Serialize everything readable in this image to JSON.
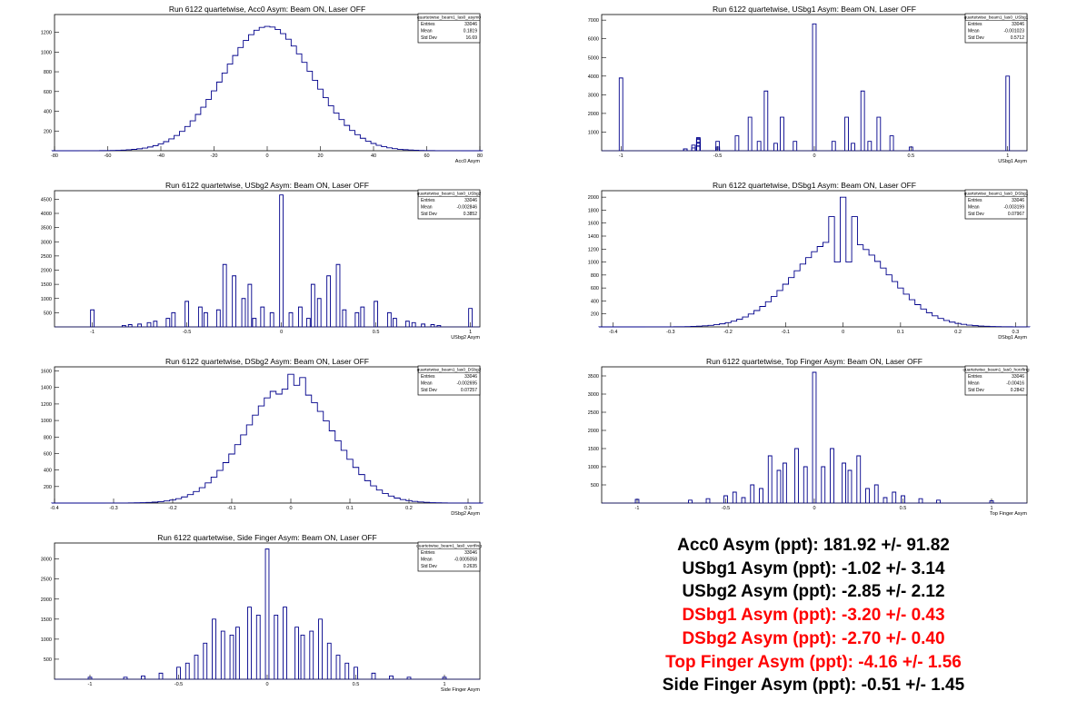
{
  "colors": {
    "hist": "#00008b",
    "frame": "#000000",
    "highlight": "#ff0000",
    "normal": "#000000"
  },
  "chart_data": [
    {
      "type": "histogram",
      "title": "Run 6122 quartetwise, Acc0 Asym: Beam ON, Laser OFF",
      "xlabel": "Acc0 Asym",
      "xlim": [
        -80,
        80
      ],
      "ylim": [
        0,
        1380
      ],
      "xticks": [
        -80,
        -60,
        -40,
        -20,
        0,
        20,
        40,
        60,
        80
      ],
      "yticks": [
        200,
        400,
        600,
        800,
        1000,
        1200
      ],
      "stats": {
        "name": "quartetwise_beam1_las0_asym0",
        "entries": "33046",
        "mean": "0.1819",
        "std_dev": "16.69"
      },
      "gaussian": {
        "amp": 1260,
        "mu": 0.2,
        "sigma": 16.7,
        "bin": 2
      }
    },
    {
      "type": "histogram",
      "title": "Run 6122 quartetwise, USbg1 Asym: Beam ON, Laser OFF",
      "xlabel": "USbg1 Asym",
      "xlim": [
        -1.1,
        1.1
      ],
      "ylim": [
        0,
        7300
      ],
      "xticks": [
        -1,
        -0.5,
        0,
        0.5,
        1
      ],
      "yticks": [
        1000,
        2000,
        3000,
        4000,
        5000,
        6000,
        7000
      ],
      "stats": {
        "name": "quartetwise_beam1_las0_USbg1",
        "entries": "33046",
        "mean": "-0.001023",
        "std_dev": "0.5712"
      },
      "spikes": [
        [
          -1.0,
          3900
        ],
        [
          -0.667,
          100
        ],
        [
          -0.625,
          150
        ],
        [
          -0.6,
          250
        ],
        [
          -0.5,
          100
        ],
        [
          -0.667,
          100
        ],
        [
          -0.6,
          250
        ],
        [
          -0.5,
          100
        ],
        [
          -0.6,
          250
        ],
        [
          -0.625,
          300
        ],
        [
          -0.6,
          400
        ],
        [
          -0.5,
          100
        ],
        [
          -0.6,
          450
        ],
        [
          -0.5,
          200
        ],
        [
          -0.6,
          600
        ],
        [
          -0.5,
          200
        ],
        [
          -0.6,
          650
        ],
        [
          -0.5,
          200
        ],
        [
          -0.6,
          700
        ],
        [
          -0.5,
          500
        ],
        [
          -0.4,
          800
        ],
        [
          -0.333,
          1800
        ],
        [
          -0.286,
          500
        ],
        [
          -0.25,
          3200
        ],
        [
          -0.2,
          400
        ],
        [
          -0.167,
          1800
        ],
        [
          -0.1,
          500
        ],
        [
          0.0,
          6800
        ],
        [
          0.1,
          500
        ],
        [
          0.167,
          1800
        ],
        [
          0.2,
          400
        ],
        [
          0.25,
          3200
        ],
        [
          0.286,
          500
        ],
        [
          0.333,
          1800
        ],
        [
          0.4,
          800
        ],
        [
          0.5,
          200
        ],
        [
          1.0,
          4000
        ]
      ]
    },
    {
      "type": "histogram",
      "title": "Run 6122 quartetwise, USbg2 Asym: Beam ON, Laser OFF",
      "xlabel": "USbg2 Asym",
      "xlim": [
        -1.2,
        1.05
      ],
      "ylim": [
        0,
        4800
      ],
      "xticks": [
        -1,
        -0.5,
        0,
        0.5,
        1
      ],
      "yticks": [
        500,
        1000,
        1500,
        2000,
        2500,
        3000,
        3500,
        4000,
        4500
      ],
      "stats": {
        "name": "quartetwise_beam1_las0_USbg2",
        "entries": "33046",
        "mean": "-0.002846",
        "std_dev": "0.3852"
      },
      "spikes": [
        [
          -1.0,
          600
        ],
        [
          -0.833,
          50
        ],
        [
          -0.8,
          80
        ],
        [
          -0.75,
          100
        ],
        [
          -0.7,
          150
        ],
        [
          -0.667,
          200
        ],
        [
          -0.6,
          300
        ],
        [
          -0.571,
          500
        ],
        [
          -0.5,
          900
        ],
        [
          -0.429,
          700
        ],
        [
          -0.4,
          500
        ],
        [
          -0.333,
          600
        ],
        [
          -0.3,
          2200
        ],
        [
          -0.25,
          1800
        ],
        [
          -0.2,
          1000
        ],
        [
          -0.167,
          1500
        ],
        [
          -0.143,
          300
        ],
        [
          -0.1,
          700
        ],
        [
          -0.05,
          500
        ],
        [
          0.0,
          4650
        ],
        [
          0.05,
          500
        ],
        [
          0.1,
          700
        ],
        [
          0.143,
          300
        ],
        [
          0.167,
          1500
        ],
        [
          0.2,
          1000
        ],
        [
          0.25,
          1800
        ],
        [
          0.3,
          2200
        ],
        [
          0.333,
          600
        ],
        [
          0.4,
          500
        ],
        [
          0.429,
          700
        ],
        [
          0.5,
          900
        ],
        [
          0.571,
          500
        ],
        [
          0.6,
          300
        ],
        [
          0.667,
          200
        ],
        [
          0.7,
          150
        ],
        [
          0.75,
          100
        ],
        [
          0.8,
          80
        ],
        [
          0.833,
          50
        ],
        [
          1.0,
          650
        ]
      ]
    },
    {
      "type": "histogram",
      "title": "Run 6122 quartetwise, DSbg1 Asym: Beam ON, Laser OFF",
      "xlabel": "DSbg1 Asym",
      "xlim": [
        -0.42,
        0.32
      ],
      "ylim": [
        0,
        2100
      ],
      "xticks": [
        -0.4,
        -0.3,
        -0.2,
        -0.1,
        0,
        0.1,
        0.2,
        0.3
      ],
      "yticks": [
        200,
        400,
        600,
        800,
        1000,
        1200,
        1400,
        1600,
        1800,
        2000
      ],
      "stats": {
        "name": "quartetwise_beam1_las0_DSbg1",
        "entries": "33046",
        "mean": "-0.003199",
        "std_dev": "0.07967"
      },
      "gaussian": {
        "amp": 1380,
        "mu": -0.003,
        "sigma": 0.0797,
        "bin": 0.01
      },
      "overrides": [
        [
          0.0,
          2000
        ],
        [
          -0.02,
          1700
        ],
        [
          0.02,
          1700
        ],
        [
          -0.01,
          1000
        ],
        [
          0.01,
          1000
        ]
      ]
    },
    {
      "type": "histogram",
      "title": "Run 6122 quartetwise, DSbg2 Asym: Beam ON, Laser OFF",
      "xlabel": "DSbg2 Asym",
      "xlim": [
        -0.4,
        0.32
      ],
      "ylim": [
        0,
        1650
      ],
      "xticks": [
        -0.4,
        -0.3,
        -0.2,
        -0.1,
        0,
        0.1,
        0.2,
        0.3
      ],
      "yticks": [
        200,
        400,
        600,
        800,
        1000,
        1200,
        1400,
        1600
      ],
      "stats": {
        "name": "quartetwise_beam1_las0_DSbg2",
        "entries": "33046",
        "mean": "-0.002695",
        "std_dev": "0.07257"
      },
      "gaussian": {
        "amp": 1450,
        "mu": -0.003,
        "sigma": 0.0726,
        "bin": 0.01
      },
      "overrides": [
        [
          0.0,
          1560
        ],
        [
          -0.02,
          1320
        ],
        [
          0.02,
          1520
        ],
        [
          -0.01,
          1380
        ]
      ]
    },
    {
      "type": "histogram",
      "title": "Run 6122 quartetwise, Top Finger Asym: Beam ON, Laser OFF",
      "xlabel": "Top Finger Asym",
      "xlim": [
        -1.2,
        1.2
      ],
      "ylim": [
        0,
        3750
      ],
      "xticks": [
        -1,
        -0.5,
        0,
        0.5,
        1
      ],
      "yticks": [
        500,
        1000,
        1500,
        2000,
        2500,
        3000,
        3500
      ],
      "stats": {
        "name": "quartetwise_beam1_las0_horzfing",
        "entries": "33046",
        "mean": "-0.00416",
        "std_dev": "0.2842"
      },
      "spikes": [
        [
          -1.0,
          100
        ],
        [
          -0.7,
          80
        ],
        [
          -0.6,
          120
        ],
        [
          -0.5,
          200
        ],
        [
          -0.45,
          300
        ],
        [
          -0.4,
          150
        ],
        [
          -0.35,
          500
        ],
        [
          -0.3,
          400
        ],
        [
          -0.25,
          1300
        ],
        [
          -0.2,
          900
        ],
        [
          -0.167,
          1100
        ],
        [
          -0.1,
          1500
        ],
        [
          -0.05,
          1000
        ],
        [
          0.0,
          3600
        ],
        [
          0.05,
          1000
        ],
        [
          0.1,
          1500
        ],
        [
          0.167,
          1100
        ],
        [
          0.2,
          900
        ],
        [
          0.25,
          1300
        ],
        [
          0.3,
          400
        ],
        [
          0.35,
          500
        ],
        [
          0.4,
          150
        ],
        [
          0.45,
          300
        ],
        [
          0.5,
          200
        ],
        [
          0.6,
          120
        ],
        [
          0.7,
          80
        ],
        [
          1.0,
          60
        ]
      ]
    },
    {
      "type": "histogram",
      "title": "Run 6122 quartetwise, Side Finger Asym: Beam ON, Laser OFF",
      "xlabel": "Side Finger Asym",
      "xlim": [
        -1.2,
        1.2
      ],
      "ylim": [
        0,
        3400
      ],
      "xticks": [
        -1,
        -0.5,
        0,
        0.5,
        1
      ],
      "yticks": [
        500,
        1000,
        1500,
        2000,
        2500,
        3000
      ],
      "stats": {
        "name": "quartetwise_beam1_las0_vertfing",
        "entries": "33046",
        "mean": "-0.0005058",
        "std_dev": "0.2635"
      },
      "spikes": [
        [
          -1.0,
          50
        ],
        [
          -0.8,
          50
        ],
        [
          -0.7,
          80
        ],
        [
          -0.6,
          150
        ],
        [
          -0.5,
          300
        ],
        [
          -0.45,
          400
        ],
        [
          -0.4,
          600
        ],
        [
          -0.35,
          900
        ],
        [
          -0.3,
          1500
        ],
        [
          -0.25,
          1200
        ],
        [
          -0.2,
          1100
        ],
        [
          -0.167,
          1300
        ],
        [
          -0.1,
          1800
        ],
        [
          -0.05,
          1600
        ],
        [
          0.0,
          3250
        ],
        [
          0.05,
          1600
        ],
        [
          0.1,
          1800
        ],
        [
          0.167,
          1300
        ],
        [
          0.2,
          1100
        ],
        [
          0.25,
          1200
        ],
        [
          0.3,
          1500
        ],
        [
          0.35,
          900
        ],
        [
          0.4,
          600
        ],
        [
          0.45,
          400
        ],
        [
          0.5,
          300
        ],
        [
          0.6,
          150
        ],
        [
          0.7,
          80
        ],
        [
          0.8,
          50
        ],
        [
          1.0,
          50
        ]
      ]
    }
  ],
  "results": [
    {
      "text": "Acc0 Asym (ppt): 181.92 +/- 91.82",
      "highlight": false
    },
    {
      "text": "USbg1 Asym (ppt): -1.02 +/- 3.14",
      "highlight": false
    },
    {
      "text": "USbg2 Asym (ppt): -2.85 +/- 2.12",
      "highlight": false
    },
    {
      "text": "DSbg1 Asym (ppt): -3.20 +/- 0.43",
      "highlight": true
    },
    {
      "text": "DSbg2 Asym (ppt): -2.70 +/- 0.40",
      "highlight": true
    },
    {
      "text": "Top Finger Asym (ppt): -4.16 +/- 1.56",
      "highlight": true
    },
    {
      "text": "Side Finger Asym (ppt): -0.51 +/- 1.45",
      "highlight": false
    }
  ]
}
